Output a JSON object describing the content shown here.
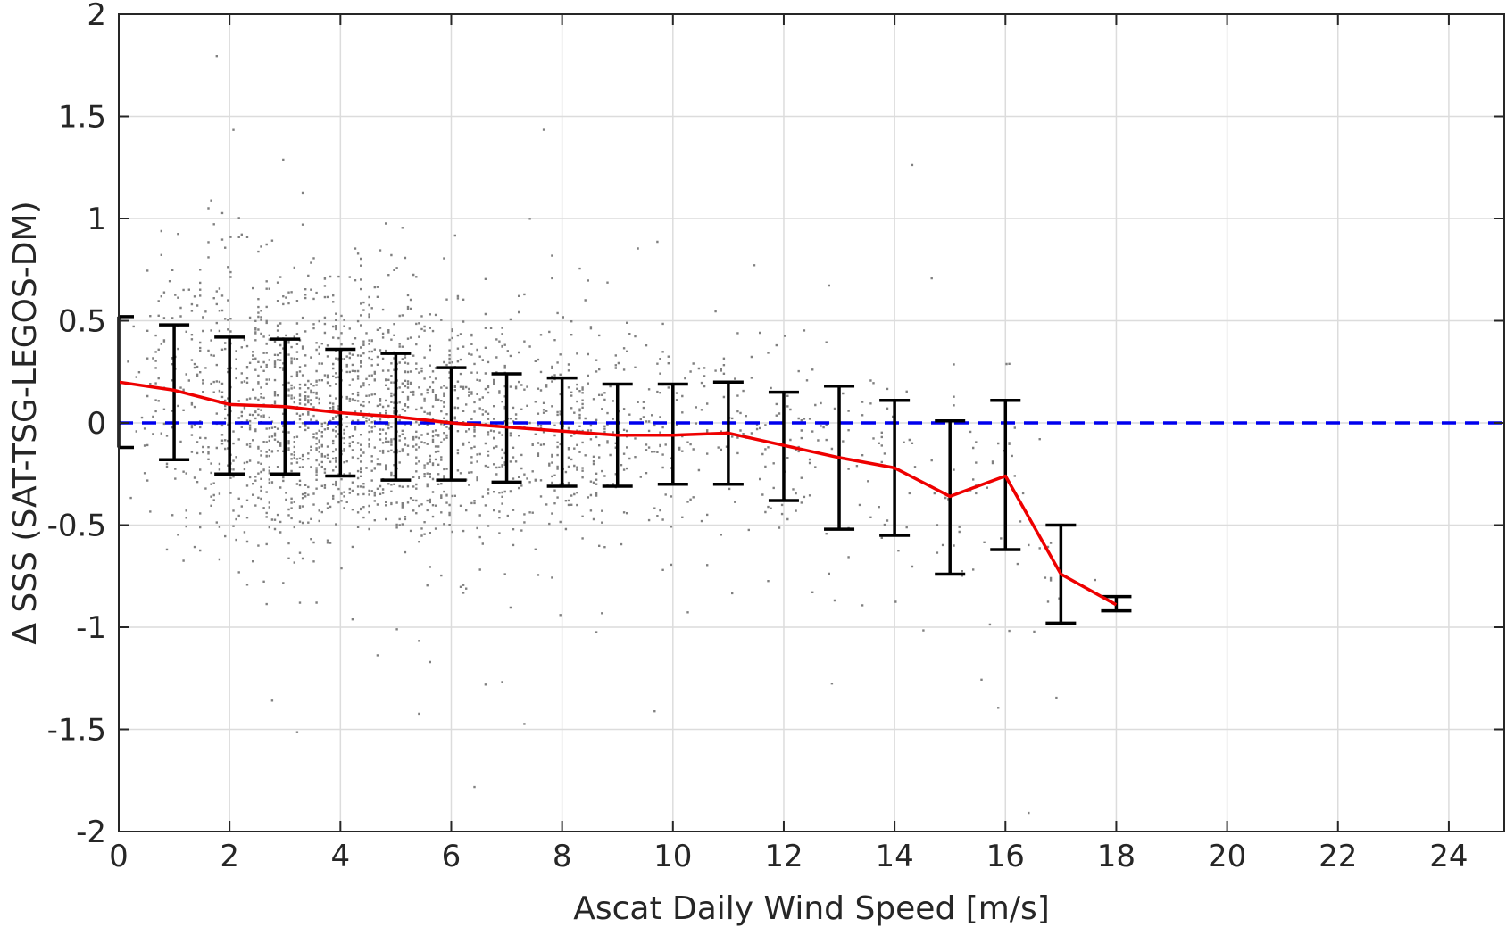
{
  "chart_data": {
    "type": "scatter",
    "xlabel": "Ascat Daily Wind Speed [m/s]",
    "ylabel": "Δ SSS (SAT-TSG-LEGOS-DM)",
    "xlim": [
      0,
      25
    ],
    "ylim": [
      -2,
      2
    ],
    "x_ticks": [
      0,
      2,
      4,
      6,
      8,
      10,
      12,
      14,
      16,
      18,
      20,
      22,
      24
    ],
    "x_tick_labels": [
      "0",
      "2",
      "4",
      "6",
      "8",
      "10",
      "12",
      "14",
      "16",
      "18",
      "20",
      "22",
      "24"
    ],
    "y_ticks": [
      2,
      1.5,
      1,
      0.5,
      0,
      -0.5,
      -1,
      -1.5,
      -2
    ],
    "y_tick_labels": [
      "2",
      "1.5",
      "1",
      "0.5",
      "0",
      "-0.5",
      "-1",
      "-1.5",
      "-2"
    ],
    "grid": true,
    "reference_line": {
      "y": 0,
      "style": "dashed",
      "color": "#0000ee"
    },
    "scatter_color": "#808080",
    "mean_color": "#ee0000",
    "errorbar_color": "#000000",
    "mean_series": {
      "x": [
        0,
        1,
        2,
        3,
        4,
        5,
        6,
        7,
        8,
        9,
        10,
        11,
        12,
        13,
        14,
        15,
        16,
        17,
        18
      ],
      "y": [
        0.2,
        0.16,
        0.09,
        0.08,
        0.05,
        0.03,
        0.0,
        -0.02,
        -0.04,
        -0.06,
        -0.06,
        -0.05,
        -0.11,
        -0.17,
        -0.22,
        -0.36,
        -0.26,
        -0.74,
        -0.89
      ],
      "err_low": [
        -0.12,
        -0.18,
        -0.25,
        -0.25,
        -0.26,
        -0.28,
        -0.28,
        -0.29,
        -0.31,
        -0.31,
        -0.3,
        -0.3,
        -0.38,
        -0.52,
        -0.55,
        -0.74,
        -0.62,
        -0.98,
        -0.92
      ],
      "err_high": [
        0.52,
        0.48,
        0.42,
        0.41,
        0.36,
        0.34,
        0.27,
        0.24,
        0.22,
        0.19,
        0.19,
        0.2,
        0.15,
        0.18,
        0.11,
        0.01,
        0.11,
        -0.5,
        -0.85
      ]
    },
    "scatter_bins": [
      {
        "x": 0,
        "mean": 0.2,
        "sd": 0.32
      },
      {
        "x": 1,
        "mean": 0.16,
        "sd": 0.33
      },
      {
        "x": 2,
        "mean": 0.09,
        "sd": 0.34
      },
      {
        "x": 3,
        "mean": 0.08,
        "sd": 0.33
      },
      {
        "x": 4,
        "mean": 0.05,
        "sd": 0.31
      },
      {
        "x": 5,
        "mean": 0.03,
        "sd": 0.31
      },
      {
        "x": 6,
        "mean": 0.0,
        "sd": 0.28
      },
      {
        "x": 7,
        "mean": -0.02,
        "sd": 0.27
      },
      {
        "x": 8,
        "mean": -0.04,
        "sd": 0.27
      },
      {
        "x": 9,
        "mean": -0.06,
        "sd": 0.25
      },
      {
        "x": 10,
        "mean": -0.06,
        "sd": 0.25
      },
      {
        "x": 11,
        "mean": -0.05,
        "sd": 0.25
      },
      {
        "x": 12,
        "mean": -0.11,
        "sd": 0.27
      },
      {
        "x": 13,
        "mean": -0.17,
        "sd": 0.35
      },
      {
        "x": 14,
        "mean": -0.22,
        "sd": 0.33
      },
      {
        "x": 15,
        "mean": -0.36,
        "sd": 0.38
      },
      {
        "x": 16,
        "mean": -0.26,
        "sd": 0.37
      },
      {
        "x": 17,
        "mean": -0.74,
        "sd": 0.24
      },
      {
        "x": 18,
        "mean": -0.89,
        "sd": 0.04
      }
    ]
  }
}
